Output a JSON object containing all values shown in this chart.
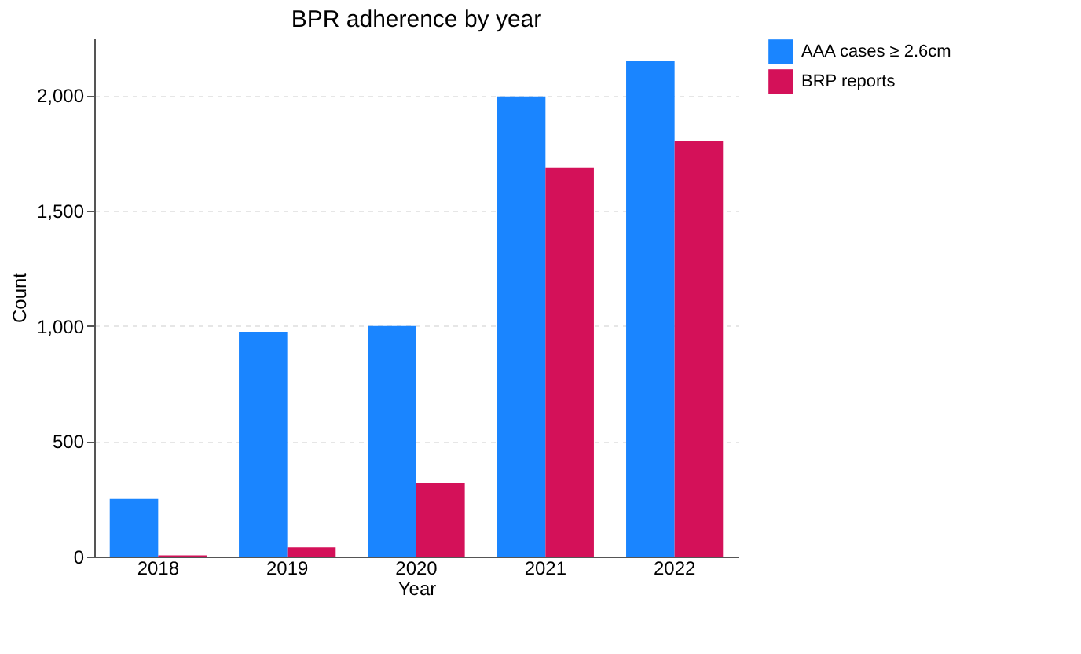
{
  "chart_data": {
    "type": "bar",
    "title": "BPR adherence by year",
    "xlabel": "Year",
    "ylabel": "Count",
    "categories": [
      "2018",
      "2019",
      "2020",
      "2021",
      "2022"
    ],
    "series": [
      {
        "name": "AAA cases ≥ 2.6cm",
        "color": "#1a85ff",
        "values": [
          250,
          975,
          1000,
          1995,
          2150
        ]
      },
      {
        "name": "BRP reports",
        "color": "#d41159",
        "values": [
          5,
          40,
          320,
          1685,
          1800
        ]
      }
    ],
    "ylim": [
      0,
      2250
    ],
    "yticks": [
      0,
      {
        "value": 500,
        "label": "500"
      },
      {
        "value": 1000,
        "label": "1,000"
      },
      {
        "value": 1500,
        "label": "1,500"
      },
      {
        "value": 2000,
        "label": "2,000"
      }
    ],
    "grid": "y",
    "legend": "right"
  }
}
